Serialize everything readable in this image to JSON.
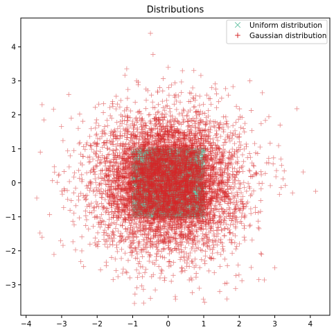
{
  "chart_data": {
    "type": "scatter",
    "title": "Distributions",
    "xlabel": "",
    "ylabel": "",
    "xlim": [
      -4.15,
      4.55
    ],
    "ylim": [
      -3.9,
      4.85
    ],
    "xticks": [
      -4,
      -3,
      -2,
      -1,
      0,
      1,
      2,
      3,
      4
    ],
    "yticks": [
      -3,
      -2,
      -1,
      0,
      1,
      2,
      3,
      4
    ],
    "xtick_labels": [
      "−4",
      "−3",
      "−2",
      "−1",
      "0",
      "1",
      "2",
      "3",
      "4"
    ],
    "ytick_labels": [
      "−3",
      "−2",
      "−1",
      "0",
      "1",
      "2",
      "3",
      "4"
    ],
    "grid": false,
    "legend_position": "top-right",
    "series": [
      {
        "name": "Uniform distribution",
        "marker": "x",
        "color": "#66c2a5",
        "distribution": "uniform",
        "x_range": [
          -1,
          1
        ],
        "y_range": [
          -1,
          1
        ],
        "n_points": 2500
      },
      {
        "name": "Gaussian distribution",
        "marker": "+",
        "color": "#d62728",
        "distribution": "gaussian",
        "mean": [
          0,
          0
        ],
        "std": 1,
        "n_points": 6000,
        "outliers": [
          [
            -0.5,
            4.4
          ],
          [
            0.0,
            3.4
          ],
          [
            0.4,
            3.3
          ],
          [
            -3.7,
            -0.45
          ],
          [
            -3.55,
            2.3
          ],
          [
            -3.5,
            1.85
          ],
          [
            -3.6,
            0.9
          ],
          [
            3.8,
            0.32
          ],
          [
            4.15,
            -0.25
          ],
          [
            3.5,
            -0.3
          ],
          [
            2.3,
            3.0
          ],
          [
            2.65,
            2.65
          ],
          [
            -0.95,
            -3.55
          ],
          [
            -0.5,
            -3.4
          ],
          [
            0.2,
            -3.35
          ],
          [
            -3.55,
            -1.6
          ],
          [
            3.0,
            -2.5
          ],
          [
            2.55,
            -2.85
          ],
          [
            1.45,
            -3.2
          ],
          [
            -2.8,
            2.6
          ],
          [
            3.15,
            1.7
          ],
          [
            -1.55,
            -2.85
          ],
          [
            1.65,
            -2.95
          ]
        ]
      }
    ]
  }
}
